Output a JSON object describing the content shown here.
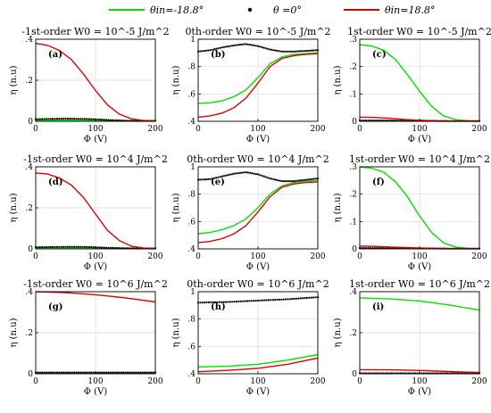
{
  "legend": [
    {
      "label": "θin=-18.8°",
      "color": "#00e000",
      "style": "line"
    },
    {
      "label": "θ =0°",
      "color": "#000000",
      "style": "dot"
    },
    {
      "label": "θin=18.8°",
      "color": "#e00000",
      "style": "line"
    }
  ],
  "chart_data": [
    {
      "type": "line",
      "title": "-1st-order W0 = 10^-5 J/m^2",
      "panel_label": "(a)",
      "xlabel": "Φ (V)",
      "ylabel": "η (n.u)",
      "xlim": [
        0,
        200
      ],
      "ylim": [
        0,
        0.4
      ],
      "xticks": [
        0,
        100,
        200
      ],
      "yticks": [
        0,
        0.2,
        0.4
      ],
      "grid": true,
      "series": [
        {
          "color": "#00e000",
          "style": "line",
          "x": [
            0,
            50,
            100,
            150,
            200
          ],
          "y": [
            0.005,
            0.005,
            0.004,
            0.003,
            0.002
          ]
        },
        {
          "color": "#000000",
          "style": "dot",
          "x": [
            0,
            25,
            50,
            75,
            100,
            125,
            150,
            175,
            200
          ],
          "y": [
            0.01,
            0.012,
            0.013,
            0.012,
            0.01,
            0.006,
            0.003,
            0.002,
            0.002
          ]
        },
        {
          "color": "#e00000",
          "style": "line",
          "x": [
            0,
            20,
            40,
            60,
            80,
            100,
            120,
            140,
            160,
            180,
            200
          ],
          "y": [
            0.38,
            0.37,
            0.345,
            0.3,
            0.23,
            0.15,
            0.08,
            0.035,
            0.012,
            0.004,
            0.002
          ]
        }
      ]
    },
    {
      "type": "line",
      "title": "0th-order W0 = 10^-5 J/m^2",
      "panel_label": "(b)",
      "xlabel": "Φ (V)",
      "ylabel": "η (n.u)",
      "xlim": [
        0,
        200
      ],
      "ylim": [
        0.4,
        1
      ],
      "xticks": [
        0,
        100,
        200
      ],
      "yticks": [
        0.4,
        0.6,
        0.8,
        1
      ],
      "grid": true,
      "series": [
        {
          "color": "#00e000",
          "style": "line",
          "x": [
            0,
            20,
            40,
            60,
            80,
            100,
            120,
            140,
            160,
            180,
            200
          ],
          "y": [
            0.53,
            0.535,
            0.55,
            0.58,
            0.63,
            0.72,
            0.82,
            0.87,
            0.89,
            0.895,
            0.9
          ]
        },
        {
          "color": "#000000",
          "style": "dot",
          "x": [
            0,
            20,
            40,
            60,
            80,
            100,
            120,
            140,
            160,
            180,
            200
          ],
          "y": [
            0.91,
            0.92,
            0.94,
            0.955,
            0.965,
            0.95,
            0.925,
            0.91,
            0.91,
            0.915,
            0.92
          ]
        },
        {
          "color": "#e00000",
          "style": "line",
          "x": [
            0,
            20,
            40,
            60,
            80,
            100,
            120,
            140,
            160,
            180,
            200
          ],
          "y": [
            0.43,
            0.44,
            0.46,
            0.5,
            0.57,
            0.68,
            0.8,
            0.86,
            0.88,
            0.89,
            0.895
          ]
        }
      ]
    },
    {
      "type": "line",
      "title": "1st-order W0 = 10^-5 J/m^2",
      "panel_label": "(c)",
      "xlabel": "Φ (V)",
      "ylabel": "η (n.u)",
      "xlim": [
        0,
        200
      ],
      "ylim": [
        0,
        0.3
      ],
      "xticks": [
        0,
        100,
        200
      ],
      "yticks": [
        0,
        0.1,
        0.2,
        0.3
      ],
      "grid": true,
      "series": [
        {
          "color": "#00e000",
          "style": "line",
          "x": [
            0,
            20,
            40,
            60,
            80,
            100,
            120,
            140,
            160,
            180,
            200
          ],
          "y": [
            0.28,
            0.275,
            0.26,
            0.225,
            0.17,
            0.11,
            0.055,
            0.02,
            0.006,
            0.002,
            0.001
          ]
        },
        {
          "color": "#000000",
          "style": "dot",
          "x": [
            0,
            50,
            100,
            150,
            200
          ],
          "y": [
            0.003,
            0.003,
            0.002,
            0.001,
            0.001
          ]
        },
        {
          "color": "#e00000",
          "style": "line",
          "x": [
            0,
            25,
            50,
            75,
            100,
            125,
            150,
            200
          ],
          "y": [
            0.015,
            0.014,
            0.011,
            0.007,
            0.004,
            0.002,
            0.001,
            0.0005
          ]
        }
      ]
    },
    {
      "type": "line",
      "title": "-1st-order W0 = 10^4 J/m^2",
      "panel_label": "(d)",
      "xlabel": "Φ (V)",
      "ylabel": "η (n.u)",
      "xlim": [
        0,
        200
      ],
      "ylim": [
        0,
        0.4
      ],
      "xticks": [
        0,
        100,
        200
      ],
      "yticks": [
        0,
        0.2,
        0.4
      ],
      "grid": true,
      "series": [
        {
          "color": "#00e000",
          "style": "line",
          "x": [
            0,
            50,
            100,
            150,
            200
          ],
          "y": [
            0.004,
            0.004,
            0.003,
            0.002,
            0.001
          ]
        },
        {
          "color": "#000000",
          "style": "dot",
          "x": [
            0,
            25,
            50,
            75,
            100,
            125,
            150,
            175,
            200
          ],
          "y": [
            0.008,
            0.009,
            0.01,
            0.01,
            0.008,
            0.005,
            0.003,
            0.002,
            0.002
          ]
        },
        {
          "color": "#e00000",
          "style": "line",
          "x": [
            0,
            20,
            40,
            60,
            80,
            100,
            120,
            140,
            160,
            180,
            200
          ],
          "y": [
            0.37,
            0.365,
            0.345,
            0.31,
            0.25,
            0.17,
            0.09,
            0.04,
            0.013,
            0.004,
            0.002
          ]
        }
      ]
    },
    {
      "type": "line",
      "title": "0th-order W0 = 10^4 J/m^2",
      "panel_label": "(e)",
      "xlabel": "Φ (V)",
      "ylabel": "η (n.u)",
      "xlim": [
        0,
        200
      ],
      "ylim": [
        0.4,
        1
      ],
      "xticks": [
        0,
        100,
        200
      ],
      "yticks": [
        0.4,
        0.6,
        0.8,
        1
      ],
      "grid": true,
      "series": [
        {
          "color": "#00e000",
          "style": "line",
          "x": [
            0,
            20,
            40,
            60,
            80,
            100,
            120,
            140,
            160,
            180,
            200
          ],
          "y": [
            0.51,
            0.52,
            0.54,
            0.57,
            0.62,
            0.7,
            0.8,
            0.86,
            0.885,
            0.895,
            0.9
          ]
        },
        {
          "color": "#000000",
          "style": "dot",
          "x": [
            0,
            20,
            40,
            60,
            80,
            100,
            120,
            140,
            160,
            180,
            200
          ],
          "y": [
            0.905,
            0.91,
            0.93,
            0.95,
            0.96,
            0.945,
            0.915,
            0.895,
            0.895,
            0.905,
            0.915
          ]
        },
        {
          "color": "#e00000",
          "style": "line",
          "x": [
            0,
            20,
            40,
            60,
            80,
            100,
            120,
            140,
            160,
            180,
            200
          ],
          "y": [
            0.445,
            0.455,
            0.475,
            0.51,
            0.57,
            0.67,
            0.78,
            0.85,
            0.875,
            0.885,
            0.89
          ]
        }
      ]
    },
    {
      "type": "line",
      "title": "1st-order W0 = 10^4 J/m^2",
      "panel_label": "(f)",
      "xlabel": "Φ (V)",
      "ylabel": "η (n.u)",
      "xlim": [
        0,
        200
      ],
      "ylim": [
        0,
        0.3
      ],
      "xticks": [
        0,
        100,
        200
      ],
      "yticks": [
        0,
        0.1,
        0.2,
        0.3
      ],
      "grid": true,
      "series": [
        {
          "color": "#00e000",
          "style": "line",
          "x": [
            0,
            20,
            40,
            60,
            80,
            100,
            120,
            140,
            160,
            180,
            200
          ],
          "y": [
            0.3,
            0.295,
            0.28,
            0.245,
            0.19,
            0.12,
            0.06,
            0.022,
            0.007,
            0.002,
            0.001
          ]
        },
        {
          "color": "#000000",
          "style": "dot",
          "x": [
            0,
            50,
            100,
            150,
            200
          ],
          "y": [
            0.003,
            0.003,
            0.002,
            0.001,
            0.001
          ]
        },
        {
          "color": "#e00000",
          "style": "line",
          "x": [
            0,
            25,
            50,
            75,
            100,
            125,
            150,
            200
          ],
          "y": [
            0.01,
            0.009,
            0.007,
            0.005,
            0.003,
            0.002,
            0.001,
            0.0005
          ]
        }
      ]
    },
    {
      "type": "line",
      "title": "-1st-order W0 = 10^6 J/m^2",
      "panel_label": "(g)",
      "xlabel": "Φ (V)",
      "ylabel": "η (n.u)",
      "xlim": [
        0,
        200
      ],
      "ylim": [
        0,
        0.4
      ],
      "xticks": [
        0,
        100,
        200
      ],
      "yticks": [
        0,
        0.2,
        0.4
      ],
      "grid": true,
      "series": [
        {
          "color": "#00e000",
          "style": "line",
          "x": [
            0,
            100,
            200
          ],
          "y": [
            0.003,
            0.003,
            0.003
          ]
        },
        {
          "color": "#000000",
          "style": "dot",
          "x": [
            0,
            50,
            100,
            150,
            200
          ],
          "y": [
            0.006,
            0.006,
            0.006,
            0.006,
            0.006
          ]
        },
        {
          "color": "#e00000",
          "style": "line",
          "x": [
            0,
            50,
            100,
            150,
            200
          ],
          "y": [
            0.4,
            0.395,
            0.385,
            0.37,
            0.35
          ]
        }
      ]
    },
    {
      "type": "line",
      "title": "0th-order W0 = 10^6 J/m^2",
      "panel_label": "(h)",
      "xlabel": "Φ (V)",
      "ylabel": "η (n.u)",
      "xlim": [
        0,
        200
      ],
      "ylim": [
        0.4,
        1
      ],
      "xticks": [
        0,
        100,
        200
      ],
      "yticks": [
        0.4,
        0.6,
        0.8,
        1
      ],
      "grid": true,
      "series": [
        {
          "color": "#00e000",
          "style": "line",
          "x": [
            0,
            50,
            100,
            150,
            200
          ],
          "y": [
            0.45,
            0.455,
            0.47,
            0.5,
            0.54
          ]
        },
        {
          "color": "#000000",
          "style": "dot",
          "x": [
            0,
            50,
            100,
            150,
            200
          ],
          "y": [
            0.92,
            0.925,
            0.935,
            0.945,
            0.96
          ]
        },
        {
          "color": "#e00000",
          "style": "line",
          "x": [
            0,
            50,
            100,
            150,
            200
          ],
          "y": [
            0.415,
            0.425,
            0.44,
            0.47,
            0.515
          ]
        }
      ]
    },
    {
      "type": "line",
      "title": "1st-order W0 = 10^6 J/m^2",
      "panel_label": "(i)",
      "xlabel": "Φ (V)",
      "ylabel": "η (n.u)",
      "xlim": [
        0,
        200
      ],
      "ylim": [
        0,
        0.4
      ],
      "xticks": [
        0,
        100,
        200
      ],
      "yticks": [
        0,
        0.2,
        0.4
      ],
      "grid": true,
      "series": [
        {
          "color": "#00e000",
          "style": "line",
          "x": [
            0,
            50,
            100,
            150,
            200
          ],
          "y": [
            0.37,
            0.365,
            0.355,
            0.335,
            0.31
          ]
        },
        {
          "color": "#000000",
          "style": "dot",
          "x": [
            0,
            100,
            200
          ],
          "y": [
            0.002,
            0.002,
            0.002
          ]
        },
        {
          "color": "#e00000",
          "style": "line",
          "x": [
            0,
            50,
            100,
            150,
            200
          ],
          "y": [
            0.02,
            0.019,
            0.016,
            0.011,
            0.006
          ]
        }
      ]
    }
  ]
}
